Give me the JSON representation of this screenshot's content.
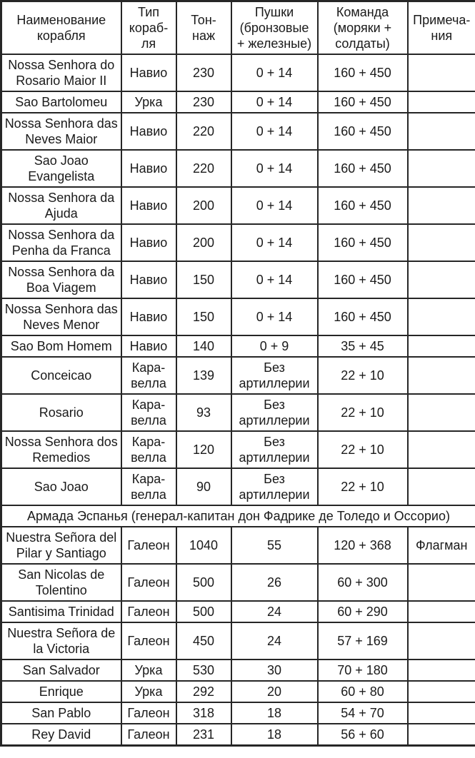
{
  "document": {
    "language": "ru",
    "colors": {
      "text": "#1a1a1a",
      "border": "#262626",
      "background": "#ffffff"
    },
    "table": {
      "columns": [
        {
          "id": "name",
          "label": "Наименование\nкорабля"
        },
        {
          "id": "type",
          "label": "Тип\nкораб-\nля"
        },
        {
          "id": "tonnage",
          "label": "Тон-\nнаж"
        },
        {
          "id": "guns",
          "label": "Пушки\n(бронзовые\n+ железные)"
        },
        {
          "id": "crew",
          "label": "Команда\n(моряки +\nсолдаты)"
        },
        {
          "id": "notes",
          "label": "Примеча-\nния"
        }
      ],
      "rows": [
        {
          "name": "Nossa Senhora do\nRosario Maior II",
          "type": "Навио",
          "tonnage": "230",
          "guns": "0 + 14",
          "crew": "160 + 450",
          "notes": ""
        },
        {
          "name": "Sao Bartolomeu",
          "type": "Урка",
          "tonnage": "230",
          "guns": "0 + 14",
          "crew": "160 + 450",
          "notes": ""
        },
        {
          "name": "Nossa Senhora das\nNeves Maior",
          "type": "Навио",
          "tonnage": "220",
          "guns": "0 + 14",
          "crew": "160 + 450",
          "notes": ""
        },
        {
          "name": "Sao Joao\nEvangelista",
          "type": "Навио",
          "tonnage": "220",
          "guns": "0 + 14",
          "crew": "160 + 450",
          "notes": ""
        },
        {
          "name": "Nossa Senhora da\nAjuda",
          "type": "Навио",
          "tonnage": "200",
          "guns": "0 + 14",
          "crew": "160 + 450",
          "notes": ""
        },
        {
          "name": "Nossa Senhora da\nPenha da Franca",
          "type": "Навио",
          "tonnage": "200",
          "guns": "0 + 14",
          "crew": "160 + 450",
          "notes": ""
        },
        {
          "name": "Nossa Senhora da\nBoa Viagem",
          "type": "Навио",
          "tonnage": "150",
          "guns": "0 + 14",
          "crew": "160 + 450",
          "notes": ""
        },
        {
          "name": "Nossa Senhora das\nNeves Menor",
          "type": "Навио",
          "tonnage": "150",
          "guns": "0 + 14",
          "crew": "160 + 450",
          "notes": ""
        },
        {
          "name": "Sao Bom Homem",
          "type": "Навио",
          "tonnage": "140",
          "guns": "0 + 9",
          "crew": "35 + 45",
          "notes": ""
        },
        {
          "name": "Conceicao",
          "type": "Кара-\nвелла",
          "tonnage": "139",
          "guns": "Без\nартиллерии",
          "crew": "22 + 10",
          "notes": ""
        },
        {
          "name": "Rosario",
          "type": "Кара-\nвелла",
          "tonnage": "93",
          "guns": "Без\nартиллерии",
          "crew": "22 + 10",
          "notes": ""
        },
        {
          "name": "Nossa Senhora dos\nRemedios",
          "type": "Кара-\nвелла",
          "tonnage": "120",
          "guns": "Без\nартиллерии",
          "crew": "22 + 10",
          "notes": ""
        },
        {
          "name": "Sao Joao",
          "type": "Кара-\nвелла",
          "tonnage": "90",
          "guns": "Без\nартиллерии",
          "crew": "22 + 10",
          "notes": ""
        },
        {
          "section": "Армада Эспанья (генерал-капитан дон Фадрике де Толедо и Оссорио)"
        },
        {
          "name": "Nuestra Señora del\nPilar y Santiago",
          "type": "Галеон",
          "tonnage": "1040",
          "guns": "55",
          "crew": "120 + 368",
          "notes": "Флагман"
        },
        {
          "name": "San Nicolas de\nTolentino",
          "type": "Галеон",
          "tonnage": "500",
          "guns": "26",
          "crew": "60 + 300",
          "notes": ""
        },
        {
          "name": "Santisima Trinidad",
          "type": "Галеон",
          "tonnage": "500",
          "guns": "24",
          "crew": "60 + 290",
          "notes": ""
        },
        {
          "name": "Nuestra Señora de\nla Victoria",
          "type": "Галеон",
          "tonnage": "450",
          "guns": "24",
          "crew": "57 + 169",
          "notes": ""
        },
        {
          "name": "San Salvador",
          "type": "Урка",
          "tonnage": "530",
          "guns": "30",
          "crew": "70 + 180",
          "notes": ""
        },
        {
          "name": "Enrique",
          "type": "Урка",
          "tonnage": "292",
          "guns": "20",
          "crew": "60 + 80",
          "notes": ""
        },
        {
          "name": "San Pablo",
          "type": "Галеон",
          "tonnage": "318",
          "guns": "18",
          "crew": "54 + 70",
          "notes": ""
        },
        {
          "name": "Rey David",
          "type": "Галеон",
          "tonnage": "231",
          "guns": "18",
          "crew": "56 + 60",
          "notes": ""
        }
      ]
    }
  }
}
